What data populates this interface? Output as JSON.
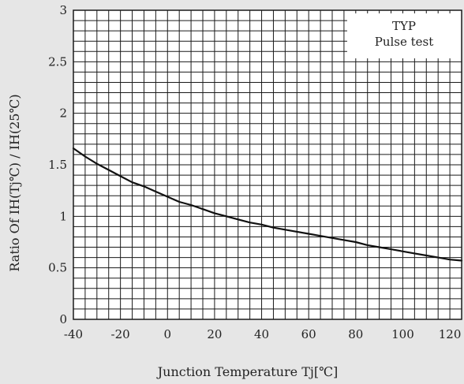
{
  "chart_data": {
    "type": "line",
    "title": "",
    "xlabel": "Junction Temperature Tj[℃]",
    "ylabel": "Ratio Of IH(Tj℃) / IH(25℃)",
    "xlim": [
      -40,
      125
    ],
    "ylim": [
      0,
      3
    ],
    "x_ticks": [
      -40,
      -20,
      0,
      20,
      40,
      60,
      80,
      100,
      120
    ],
    "y_ticks": [
      0,
      0.5,
      1,
      1.5,
      2,
      2.5,
      3
    ],
    "y_tick_labels": [
      "0",
      "0.5",
      "1",
      "1.5",
      "2",
      "2.5",
      "3"
    ],
    "grid": true,
    "annotations": [
      "TYP",
      "Pulse test"
    ],
    "legend_position": "top-right",
    "series": [
      {
        "x": [
          -40,
          -35,
          -30,
          -25,
          -20,
          -15,
          -10,
          -5,
          0,
          5,
          10,
          15,
          20,
          25,
          30,
          35,
          40,
          45,
          50,
          55,
          60,
          65,
          70,
          75,
          80,
          85,
          90,
          95,
          100,
          105,
          110,
          115,
          120,
          125
        ],
        "values": [
          1.66,
          1.58,
          1.51,
          1.45,
          1.39,
          1.33,
          1.29,
          1.24,
          1.19,
          1.14,
          1.11,
          1.07,
          1.03,
          1.0,
          0.97,
          0.94,
          0.92,
          0.89,
          0.87,
          0.85,
          0.83,
          0.81,
          0.79,
          0.77,
          0.75,
          0.72,
          0.7,
          0.68,
          0.66,
          0.64,
          0.62,
          0.6,
          0.58,
          0.57
        ],
        "color": "#111111"
      }
    ]
  },
  "colors": {
    "background": "#e6e6e6",
    "plot_background": "#ffffff",
    "grid": "#1a1a1a",
    "curve": "#111111"
  }
}
